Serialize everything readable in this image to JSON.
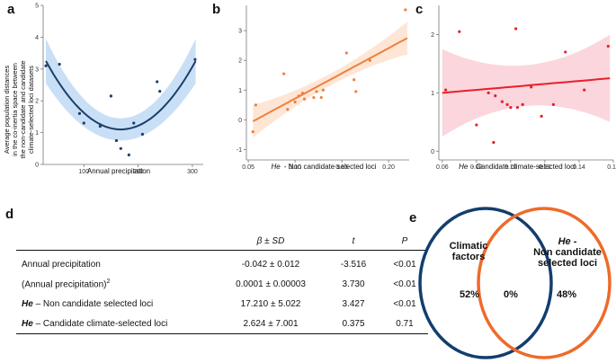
{
  "panels": {
    "a": "a",
    "b": "b",
    "c": "c",
    "d": "d",
    "e": "e"
  },
  "chart_data": [
    {
      "id": "a",
      "type": "scatter",
      "fit": "quadratic",
      "title": "",
      "xlabel": "Annual precipitation",
      "ylabel": [
        "Average population distances",
        "in the co-inertia space between",
        "the non-candidate and candidate",
        "climate-selected loci datasets"
      ],
      "xlim": [
        25,
        320
      ],
      "ylim": [
        0,
        5
      ],
      "xticks": [
        100,
        200,
        300
      ],
      "yticks": [
        0,
        1,
        2,
        3,
        4,
        5
      ],
      "x": [
        30,
        55,
        92,
        100,
        130,
        150,
        160,
        168,
        183,
        192,
        208,
        235,
        240,
        305
      ],
      "y": [
        3.1,
        3.15,
        1.6,
        1.3,
        1.2,
        2.15,
        0.75,
        0.5,
        0.3,
        1.3,
        0.95,
        2.6,
        2.3,
        3.3
      ],
      "fit_curve": {
        "x_min": 30,
        "x_vertex": 168,
        "y_vertex": 1.1,
        "a": 0.000113
      },
      "band_halfwidth": {
        "min": 0.35,
        "max": 0.7
      },
      "line_color": "#1a3f6b",
      "band_color": "#c9dff6",
      "point_color": "#1a3f6b"
    },
    {
      "id": "b",
      "type": "scatter",
      "fit": "linear",
      "title": "",
      "xlabel_italic": "He",
      "xlabel": "- Non candidate selected loci",
      "xlim": [
        0.048,
        0.222
      ],
      "ylim": [
        -1.35,
        3.85
      ],
      "xticks": [
        0.05,
        0.1,
        0.15,
        0.2
      ],
      "xtick_labels": [
        "0.05",
        "0.10",
        "0.15",
        "0.20"
      ],
      "yticks": [
        -1,
        0,
        1,
        2,
        3
      ],
      "x": [
        0.055,
        0.058,
        0.088,
        0.092,
        0.1,
        0.104,
        0.108,
        0.11,
        0.12,
        0.123,
        0.128,
        0.13,
        0.155,
        0.163,
        0.165,
        0.18,
        0.218
      ],
      "y": [
        -0.4,
        0.5,
        1.55,
        0.35,
        0.6,
        0.8,
        0.9,
        0.7,
        0.75,
        0.95,
        0.75,
        1.0,
        2.25,
        1.35,
        0.95,
        2.0,
        3.7
      ],
      "fit_line": {
        "x0": 0.055,
        "y0": -0.05,
        "x1": 0.22,
        "y1": 2.75
      },
      "band_halfwidth": {
        "min": 0.2,
        "max": 0.55
      },
      "line_color": "#f07f3c",
      "band_color": "#fde6d5",
      "point_color": "#f07f3c"
    },
    {
      "id": "c",
      "type": "scatter",
      "fit": "linear",
      "title": "",
      "xlabel_italic": "He",
      "xlabel": "- Candidate climate-selected loci",
      "xlim": [
        0.058,
        0.16
      ],
      "ylim": [
        -0.15,
        2.5
      ],
      "xticks": [
        0.06,
        0.08,
        0.1,
        0.12,
        0.14,
        0.16
      ],
      "xtick_labels": [
        "0.06",
        "0.08",
        "0.10",
        "0.12",
        "0.14",
        "0.16"
      ],
      "yticks": [
        0,
        1,
        2
      ],
      "x": [
        0.062,
        0.07,
        0.08,
        0.087,
        0.09,
        0.091,
        0.095,
        0.098,
        0.1,
        0.103,
        0.104,
        0.107,
        0.112,
        0.118,
        0.125,
        0.132,
        0.143,
        0.157
      ],
      "y": [
        1.05,
        2.05,
        0.45,
        1.0,
        0.15,
        0.95,
        0.85,
        0.8,
        0.75,
        2.1,
        0.75,
        0.8,
        1.1,
        0.6,
        0.8,
        1.7,
        1.05,
        1.8
      ],
      "fit_line": {
        "x0": 0.06,
        "y0": 1.0,
        "x1": 0.158,
        "y1": 1.25
      },
      "band_halfwidth": {
        "min": 0.35,
        "max": 0.75
      },
      "line_color": "#e8202a",
      "band_color": "#fbd6dc",
      "point_color": "#e8202a"
    }
  ],
  "table": {
    "headers": [
      "",
      "β ± SD",
      "t",
      "P"
    ],
    "rows": [
      {
        "label": "Annual precipitation",
        "label_italic": "",
        "beta": "-0.042",
        "sd": "± 0.012",
        "t": "-3.516",
        "p": "<0.01"
      },
      {
        "label": "(Annual precipitation)",
        "label_sup": "2",
        "label_italic": "",
        "beta": "0.0001",
        "sd": "± 0.00003",
        "t": "3.730",
        "p": "<0.01"
      },
      {
        "label": "– Non candidate selected loci",
        "label_italic": "He",
        "beta": "17.210",
        "sd": "± 5.022",
        "t": "3.427",
        "p": "<0.01"
      },
      {
        "label": "– Candidate climate-selected loci",
        "label_italic": "He",
        "beta": "2.624",
        "sd": "± 7.001",
        "t": "0.375",
        "p": "0.71"
      }
    ]
  },
  "venn": {
    "left_label": [
      "Climatic",
      "factors"
    ],
    "left_value": "52%",
    "overlap_value": "0%",
    "right_label_italic": "He",
    "right_label_dash": " -",
    "right_label": [
      "Non candidate",
      "selected loci"
    ],
    "right_value": "48%",
    "left_color": "#123e6e",
    "right_color": "#ef6a2a"
  }
}
